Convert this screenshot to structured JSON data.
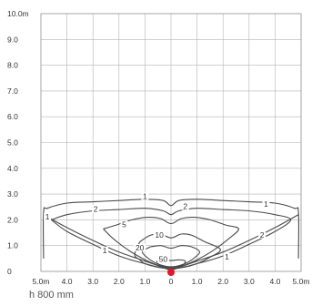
{
  "chart_data": {
    "type": "line",
    "title": "",
    "xlabel": "",
    "ylabel": "",
    "xlim": [
      -5,
      5
    ],
    "ylim": [
      0,
      10
    ],
    "grid": true,
    "x_tick_labels": [
      "5.0m",
      "4.0",
      "3.0",
      "2.0",
      "1.0",
      "0",
      "1.0",
      "2.0",
      "3.0",
      "4.0",
      "5.0m"
    ],
    "y_tick_labels": [
      "0",
      "1.0",
      "2.0",
      "3.0",
      "4.0",
      "5.0",
      "6.0",
      "7.0",
      "8.0",
      "9.0",
      "10.0m"
    ],
    "series": [
      {
        "label": "1",
        "color": "#4a4a4a",
        "points": [
          [
            -4.9,
            0.5
          ],
          [
            -4.9,
            2.3
          ],
          [
            -4.75,
            2.45
          ],
          [
            -4.0,
            2.65
          ],
          [
            -3.0,
            2.7
          ],
          [
            -2.0,
            2.75
          ],
          [
            -1.0,
            2.8
          ],
          [
            -0.3,
            2.75
          ],
          [
            0,
            2.55
          ],
          [
            0.3,
            2.75
          ],
          [
            1.0,
            2.8
          ],
          [
            2.0,
            2.75
          ],
          [
            3.0,
            2.7
          ],
          [
            4.0,
            2.65
          ],
          [
            4.75,
            2.45
          ],
          [
            4.9,
            2.3
          ],
          [
            4.9,
            0.5
          ]
        ]
      },
      {
        "label": "1",
        "color": "#4a4a4a",
        "points": [
          [
            -4.9,
            2.2
          ],
          [
            -4.0,
            1.7
          ],
          [
            -3.0,
            1.2
          ],
          [
            -2.0,
            0.75
          ],
          [
            -1.0,
            0.4
          ],
          [
            -0.3,
            0.15
          ],
          [
            0,
            0.05
          ],
          [
            0.3,
            0.15
          ],
          [
            1.0,
            0.4
          ],
          [
            2.0,
            0.75
          ],
          [
            3.0,
            1.2
          ],
          [
            4.0,
            1.7
          ],
          [
            4.9,
            2.2
          ]
        ]
      },
      {
        "label": "2",
        "color": "#4a4a4a",
        "points": [
          [
            -4.6,
            2.0
          ],
          [
            -4.0,
            2.2
          ],
          [
            -3.0,
            2.35
          ],
          [
            -2.0,
            2.4
          ],
          [
            -1.0,
            2.45
          ],
          [
            -0.3,
            2.35
          ],
          [
            0,
            2.2
          ],
          [
            0.3,
            2.35
          ],
          [
            1.0,
            2.45
          ],
          [
            2.0,
            2.4
          ],
          [
            3.0,
            2.35
          ],
          [
            4.0,
            2.2
          ],
          [
            4.6,
            2.0
          ],
          [
            4.0,
            1.55
          ],
          [
            3.0,
            1.05
          ],
          [
            2.0,
            0.6
          ],
          [
            1.0,
            0.3
          ],
          [
            0,
            0.1
          ],
          [
            -1.0,
            0.3
          ],
          [
            -2.0,
            0.6
          ],
          [
            -3.0,
            1.05
          ],
          [
            -4.0,
            1.55
          ],
          [
            -4.6,
            2.0
          ]
        ]
      },
      {
        "label": "5",
        "color": "#4a4a4a",
        "points": [
          [
            -2.6,
            1.65
          ],
          [
            -2.1,
            1.8
          ],
          [
            -1.5,
            2.0
          ],
          [
            -0.9,
            2.1
          ],
          [
            -0.4,
            2.05
          ],
          [
            0,
            1.85
          ],
          [
            0.4,
            2.05
          ],
          [
            0.9,
            2.1
          ],
          [
            1.5,
            2.0
          ],
          [
            2.1,
            1.8
          ],
          [
            2.6,
            1.65
          ],
          [
            2.2,
            1.25
          ],
          [
            1.6,
            0.8
          ],
          [
            1.0,
            0.45
          ],
          [
            0.4,
            0.2
          ],
          [
            0,
            0.12
          ],
          [
            -0.4,
            0.2
          ],
          [
            -1.0,
            0.45
          ],
          [
            -1.6,
            0.8
          ],
          [
            -2.2,
            1.25
          ],
          [
            -2.6,
            1.65
          ]
        ]
      },
      {
        "label": "10",
        "color": "#4a4a4a",
        "points": [
          [
            -1.2,
            1.15
          ],
          [
            -0.8,
            1.4
          ],
          [
            -0.4,
            1.45
          ],
          [
            0,
            1.3
          ],
          [
            0.4,
            1.45
          ],
          [
            0.8,
            1.4
          ],
          [
            1.3,
            1.15
          ],
          [
            1.9,
            0.85
          ],
          [
            1.5,
            0.55
          ],
          [
            1.0,
            0.3
          ],
          [
            0.5,
            0.16
          ],
          [
            0,
            0.12
          ],
          [
            -0.5,
            0.16
          ],
          [
            -1.0,
            0.3
          ],
          [
            -1.2,
            0.45
          ],
          [
            -1.4,
            0.65
          ],
          [
            -1.2,
            1.15
          ]
        ]
      },
      {
        "label": "20",
        "color": "#4a4a4a",
        "points": [
          [
            -0.8,
            0.95
          ],
          [
            -0.4,
            1.0
          ],
          [
            0,
            0.9
          ],
          [
            0.4,
            1.0
          ],
          [
            0.8,
            0.95
          ],
          [
            1.1,
            0.75
          ],
          [
            0.8,
            0.45
          ],
          [
            0.4,
            0.25
          ],
          [
            0,
            0.18
          ],
          [
            -0.4,
            0.25
          ],
          [
            -0.8,
            0.45
          ],
          [
            -1.1,
            0.75
          ],
          [
            -0.8,
            0.95
          ]
        ]
      },
      {
        "label": "50",
        "color": "#4a4a4a",
        "points": [
          [
            -0.55,
            0.4
          ],
          [
            -0.3,
            0.45
          ],
          [
            0,
            0.42
          ],
          [
            0.3,
            0.45
          ],
          [
            0.55,
            0.4
          ],
          [
            0.45,
            0.25
          ],
          [
            0.2,
            0.18
          ],
          [
            0,
            0.16
          ],
          [
            -0.2,
            0.18
          ],
          [
            -0.45,
            0.25
          ],
          [
            -0.55,
            0.4
          ]
        ]
      }
    ],
    "contour_labels": [
      {
        "text": "1",
        "x": -1.0,
        "y": 2.85
      },
      {
        "text": "1",
        "x": 3.65,
        "y": 2.55
      },
      {
        "text": "1",
        "x": -4.75,
        "y": 2.05
      },
      {
        "text": "1",
        "x": -2.55,
        "y": 0.75
      },
      {
        "text": "1",
        "x": 2.15,
        "y": 0.5
      },
      {
        "text": "2",
        "x": -2.9,
        "y": 2.35
      },
      {
        "text": "2",
        "x": 0.55,
        "y": 2.45
      },
      {
        "text": "2",
        "x": 3.5,
        "y": 1.35
      },
      {
        "text": "5",
        "x": -1.8,
        "y": 1.75
      },
      {
        "text": "10",
        "x": -0.45,
        "y": 1.35
      },
      {
        "text": "20",
        "x": -1.2,
        "y": 0.85
      },
      {
        "text": "50",
        "x": -0.3,
        "y": 0.4
      }
    ],
    "source_marker": {
      "x": 0,
      "y": 0,
      "color": "#e4162b"
    },
    "caption": "h 800 mm"
  }
}
